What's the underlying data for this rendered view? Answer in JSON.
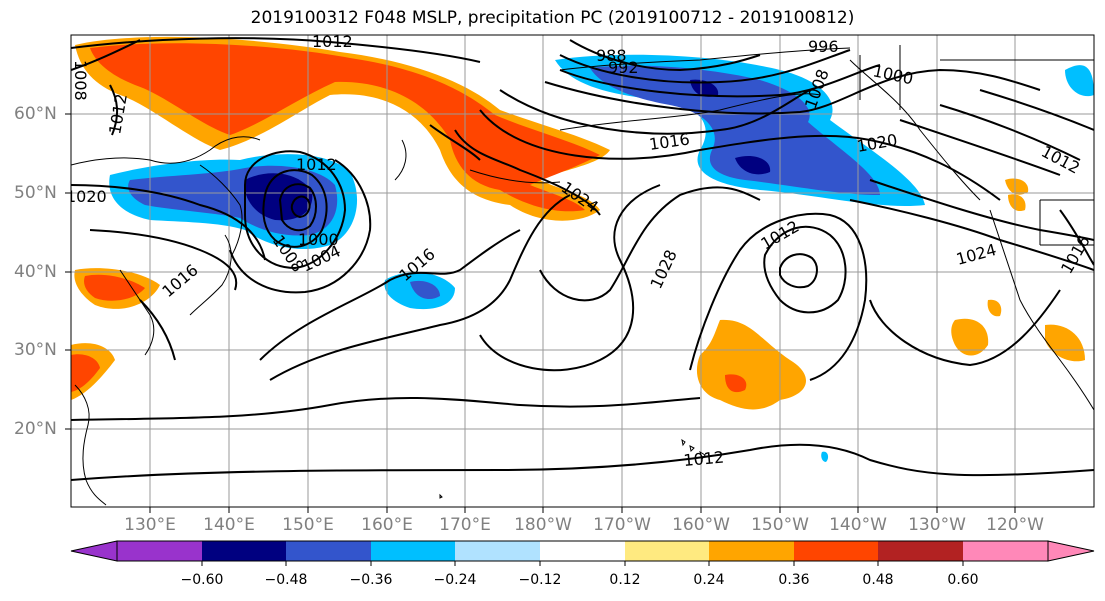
{
  "title": "2019100312 F048 MSLP, precipitation PC (2019100712 - 2019100812)",
  "lat_labels": [
    "60°N",
    "50°N",
    "40°N",
    "30°N",
    "20°N"
  ],
  "lon_labels": [
    "130°E",
    "140°E",
    "150°E",
    "160°E",
    "170°E",
    "180°W",
    "170°W",
    "160°W",
    "150°W",
    "140°W",
    "130°W",
    "120°W"
  ],
  "contour_labels": [
    "1012",
    "1008",
    "1012",
    "988",
    "992",
    "996",
    "1000",
    "1008",
    "1016",
    "1020",
    "1012",
    "1012",
    "1020",
    "1024",
    "1016",
    "1000",
    "1008",
    "1004",
    "1016",
    "1028",
    "1012",
    "1024",
    "1016",
    "1012"
  ],
  "colorbar": {
    "ticks": [
      "−0.60",
      "−0.48",
      "−0.36",
      "−0.24",
      "−0.12",
      "0.12",
      "0.24",
      "0.36",
      "0.48",
      "0.60"
    ],
    "colors": [
      "#9933cc",
      "#000080",
      "#3355cc",
      "#00bfff",
      "#b0e2ff",
      "#ffffff",
      "#ffea80",
      "#ffa500",
      "#ff4500",
      "#b22222",
      "#ff88b8"
    ]
  }
}
